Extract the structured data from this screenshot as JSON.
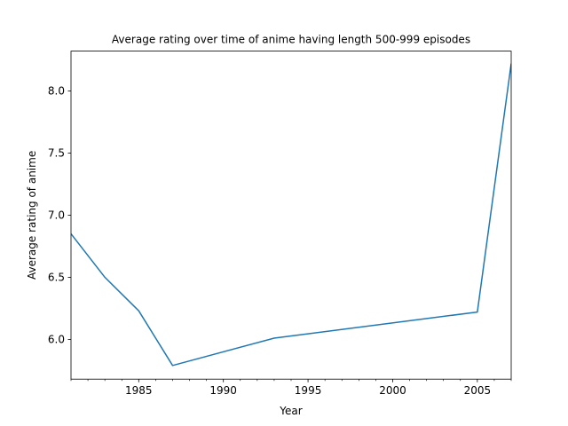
{
  "chart_data": {
    "type": "line",
    "title": "Average rating over time of anime having length 500-999 episodes",
    "xlabel": "Year",
    "ylabel": "Average rating of anime",
    "xlim": [
      1981,
      2007
    ],
    "ylim": [
      5.68,
      8.32
    ],
    "x_ticks": [
      1985,
      1990,
      1995,
      2000,
      2005
    ],
    "x_tick_labels": [
      "1985",
      "1990",
      "1995",
      "2000",
      "2005"
    ],
    "x_minor_ticks": [
      1981,
      1982,
      1983,
      1984,
      1986,
      1987,
      1988,
      1989,
      1991,
      1992,
      1993,
      1994,
      1996,
      1997,
      1998,
      1999,
      2001,
      2002,
      2003,
      2004,
      2006,
      2007
    ],
    "y_ticks": [
      6.0,
      6.5,
      7.0,
      7.5,
      8.0
    ],
    "y_tick_labels": [
      "6.0",
      "6.5",
      "7.0",
      "7.5",
      "8.0"
    ],
    "grid": false,
    "line_color": "#1f77b4",
    "series": [
      {
        "x": [
          1981,
          1983,
          1985,
          1987,
          1993,
          2005,
          2007
        ],
        "y": [
          6.85,
          6.5,
          6.23,
          5.79,
          6.01,
          6.22,
          8.22
        ]
      }
    ]
  }
}
